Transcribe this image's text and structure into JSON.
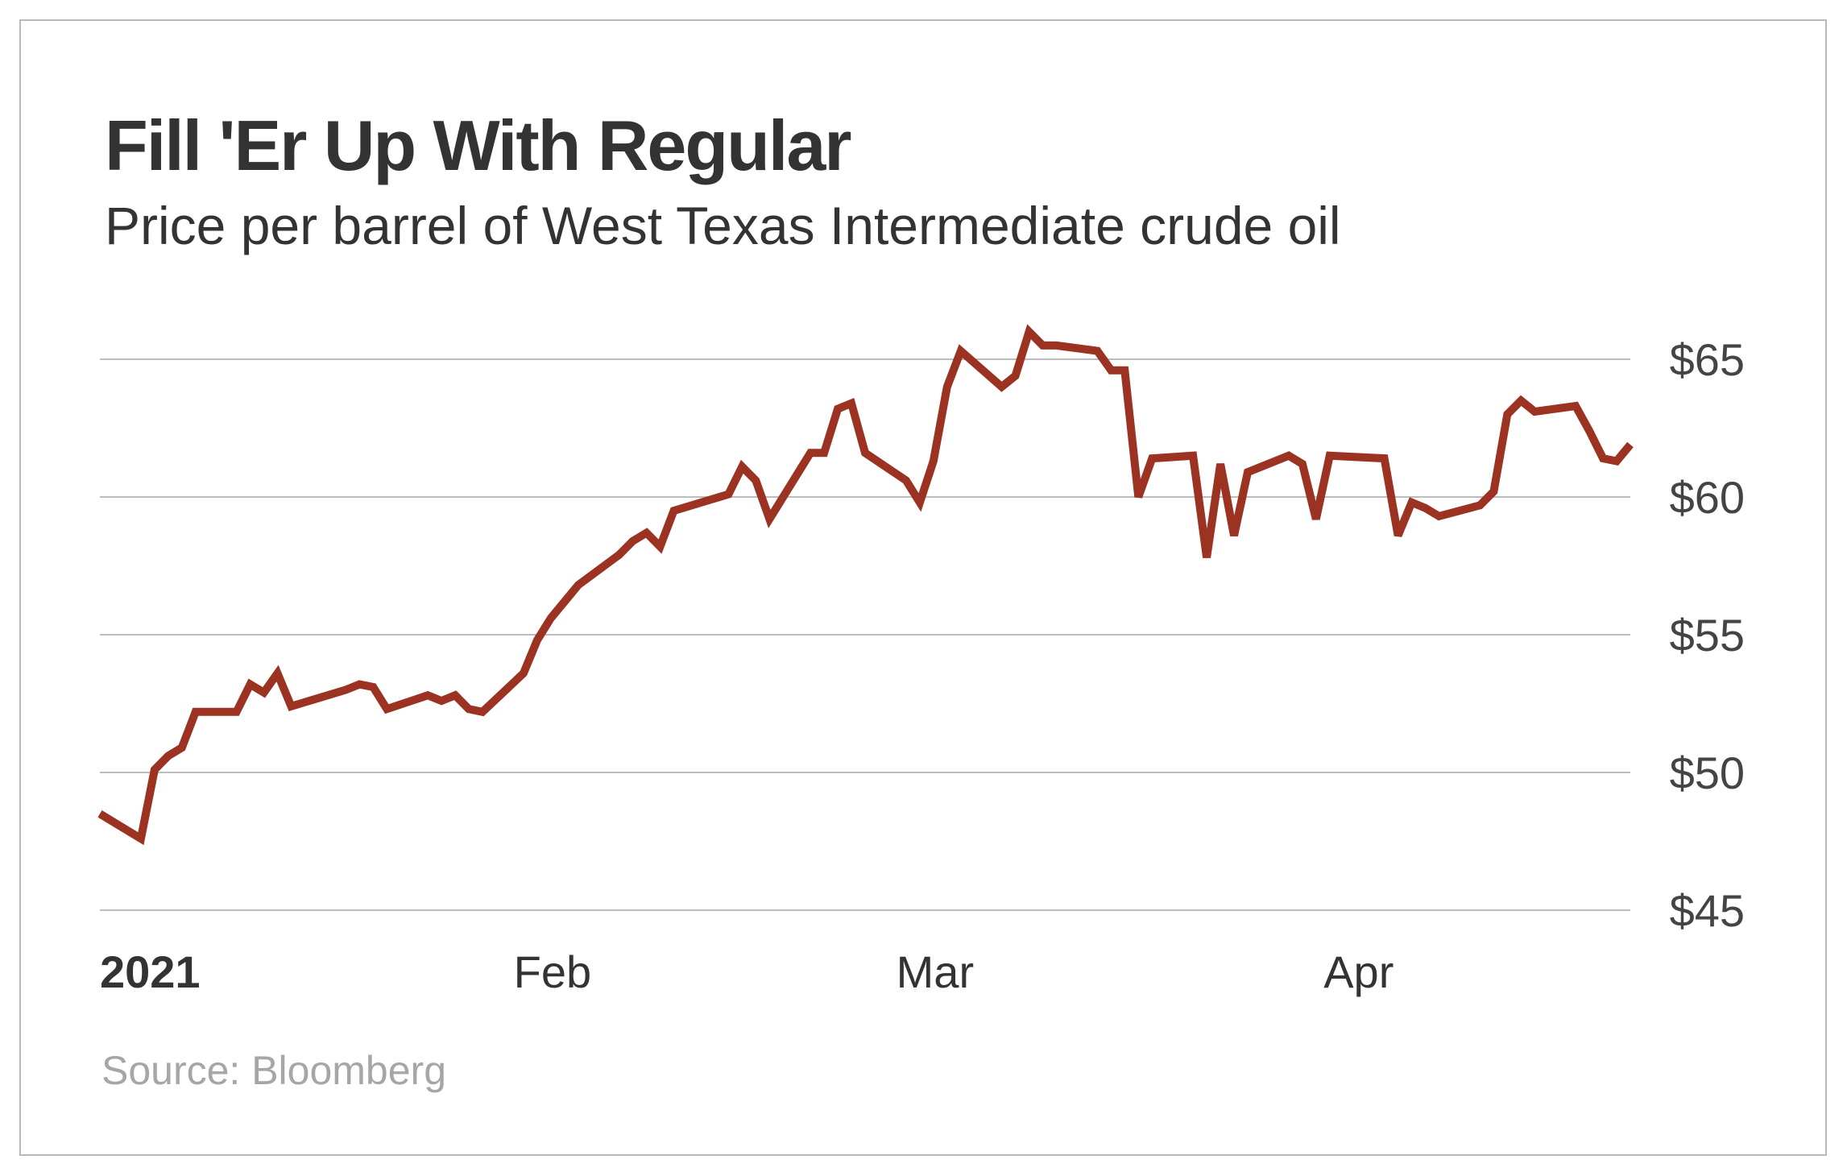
{
  "chart_data": {
    "type": "line",
    "title": "Fill 'Er Up With Regular",
    "subtitle": "Price per barrel of West Texas Intermediate crude oil",
    "source": "Source: Bloomberg",
    "xlabel": "",
    "ylabel": "",
    "x_ticks": [
      {
        "date": "2021-01-01",
        "label": "2021",
        "bold": true
      },
      {
        "date": "2021-02-01",
        "label": "Feb",
        "bold": false
      },
      {
        "date": "2021-03-01",
        "label": "Mar",
        "bold": false
      },
      {
        "date": "2021-04-01",
        "label": "Apr",
        "bold": false
      }
    ],
    "xlim": [
      "2021-01-01",
      "2021-04-23"
    ],
    "y_ticks": [
      {
        "value": 45,
        "label": "$45"
      },
      {
        "value": 50,
        "label": "$50"
      },
      {
        "value": 55,
        "label": "$55"
      },
      {
        "value": 60,
        "label": "$60"
      },
      {
        "value": 65,
        "label": "$65"
      }
    ],
    "ylim": [
      45,
      65
    ],
    "grid": true,
    "line_color": "#9b3222",
    "series": [
      {
        "x": [
          "2021-01-01",
          "2021-01-04",
          "2021-01-05",
          "2021-01-06",
          "2021-01-07",
          "2021-01-08",
          "2021-01-11",
          "2021-01-12",
          "2021-01-13",
          "2021-01-14",
          "2021-01-15",
          "2021-01-19",
          "2021-01-20",
          "2021-01-21",
          "2021-01-22",
          "2021-01-25",
          "2021-01-26",
          "2021-01-27",
          "2021-01-28",
          "2021-01-29",
          "2021-02-01",
          "2021-02-02",
          "2021-02-03",
          "2021-02-04",
          "2021-02-05",
          "2021-02-08",
          "2021-02-09",
          "2021-02-10",
          "2021-02-11",
          "2021-02-12",
          "2021-02-16",
          "2021-02-17",
          "2021-02-18",
          "2021-02-19",
          "2021-02-22",
          "2021-02-23",
          "2021-02-24",
          "2021-02-25",
          "2021-02-26",
          "2021-03-01",
          "2021-03-02",
          "2021-03-03",
          "2021-03-04",
          "2021-03-05",
          "2021-03-08",
          "2021-03-09",
          "2021-03-10",
          "2021-03-11",
          "2021-03-12",
          "2021-03-15",
          "2021-03-16",
          "2021-03-17",
          "2021-03-18",
          "2021-03-19",
          "2021-03-22",
          "2021-03-23",
          "2021-03-24",
          "2021-03-25",
          "2021-03-26",
          "2021-03-29",
          "2021-03-30",
          "2021-03-31",
          "2021-04-01",
          "2021-04-05",
          "2021-04-06",
          "2021-04-07",
          "2021-04-08",
          "2021-04-09",
          "2021-04-12",
          "2021-04-13",
          "2021-04-14",
          "2021-04-15",
          "2021-04-16",
          "2021-04-19",
          "2021-04-20",
          "2021-04-21",
          "2021-04-22",
          "2021-04-23"
        ],
        "y": [
          48.5,
          47.6,
          50.1,
          50.6,
          50.9,
          52.2,
          52.2,
          53.2,
          52.9,
          53.6,
          52.4,
          53.0,
          53.2,
          53.1,
          52.3,
          52.8,
          52.6,
          52.8,
          52.3,
          52.2,
          53.6,
          54.8,
          55.6,
          56.2,
          56.8,
          57.9,
          58.4,
          58.7,
          58.2,
          59.5,
          60.1,
          61.1,
          60.6,
          59.2,
          61.6,
          61.6,
          63.2,
          63.4,
          61.6,
          60.6,
          59.8,
          61.3,
          64.0,
          65.3,
          64.0,
          64.4,
          66.0,
          65.5,
          65.5,
          65.3,
          64.6,
          64.6,
          60.0,
          61.4,
          61.5,
          57.8,
          61.2,
          58.6,
          60.9,
          61.5,
          61.2,
          59.2,
          61.5,
          61.4,
          58.6,
          59.8,
          59.6,
          59.3,
          59.7,
          60.2,
          63.0,
          63.5,
          63.1,
          63.3,
          62.4,
          61.4,
          61.3,
          61.9
        ]
      }
    ]
  }
}
